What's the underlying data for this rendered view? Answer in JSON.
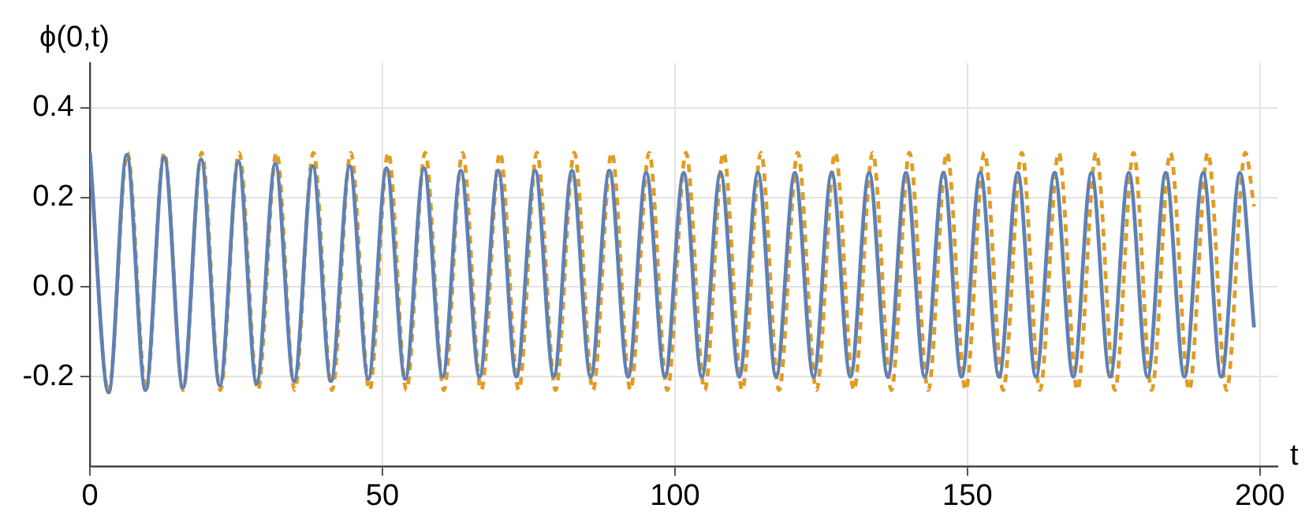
{
  "chart_data": {
    "type": "line",
    "xlabel": "t",
    "ylabel": "ϕ(0,t)",
    "xlim": [
      0,
      203
    ],
    "xticks": [
      0,
      50,
      100,
      150,
      200
    ],
    "ylim": [
      -0.4,
      0.5
    ],
    "yticks": [
      {
        "value": -0.2,
        "label": "-0.2"
      },
      {
        "value": 0,
        "label": "0.0"
      },
      {
        "value": 0.2,
        "label": "0.2"
      },
      {
        "value": 0.4,
        "label": "0.4"
      }
    ],
    "grid": true,
    "legend": false,
    "marker": "none",
    "series": [
      {
        "color": "#5e81b5",
        "line_style": "solid",
        "x": [
          0,
          3.2,
          6.3,
          9.5,
          12.7,
          15.9,
          19.0,
          22.2,
          25.4,
          28.5,
          31.7,
          34.9,
          38.1,
          41.2,
          44.4,
          47.6,
          50.7,
          53.9,
          57.1,
          60.3,
          63.4,
          66.6,
          69.8,
          72.9,
          76.1,
          79.3,
          82.4,
          85.6,
          88.8,
          92.0,
          95.1,
          98.3,
          101.5,
          104.6,
          107.8,
          111.0,
          114.2,
          117.3,
          120.5,
          123.7,
          126.8,
          130.0,
          133.2,
          136.4,
          139.5,
          142.7,
          145.9,
          149.0,
          152.2,
          155.4,
          158.6,
          161.7,
          164.9,
          168.1,
          171.2,
          174.4,
          177.6,
          180.8,
          183.9,
          187.1,
          190.3,
          193.4,
          196.6,
          199
        ],
        "values": [
          0.3,
          -0.235,
          0.295,
          -0.23,
          0.29,
          -0.225,
          0.285,
          -0.22,
          0.28,
          -0.215,
          0.275,
          -0.21,
          0.27,
          -0.21,
          0.27,
          -0.205,
          0.265,
          -0.205,
          0.265,
          -0.2,
          0.26,
          -0.2,
          0.26,
          -0.2,
          0.26,
          -0.2,
          0.26,
          -0.2,
          0.26,
          -0.2,
          0.255,
          -0.2,
          0.255,
          -0.2,
          0.255,
          -0.2,
          0.255,
          -0.2,
          0.255,
          -0.2,
          0.255,
          -0.2,
          0.255,
          -0.2,
          0.255,
          -0.2,
          0.255,
          -0.2,
          0.255,
          -0.2,
          0.255,
          -0.2,
          0.255,
          -0.2,
          0.255,
          -0.2,
          0.255,
          -0.2,
          0.255,
          -0.2,
          0.255,
          -0.2,
          0.255,
          -0.09
        ]
      },
      {
        "color": "#e19c24",
        "line_style": "dashed",
        "x": [
          0,
          3.2,
          6.4,
          9.6,
          12.7,
          15.9,
          19.1,
          22.3,
          25.5,
          28.7,
          31.9,
          35.0,
          38.2,
          41.4,
          44.6,
          47.8,
          51.0,
          54.1,
          57.3,
          60.5,
          63.7,
          66.9,
          70.1,
          73.3,
          76.4,
          79.6,
          82.8,
          86.0,
          89.2,
          92.4,
          95.6,
          98.7,
          101.9,
          105.1,
          108.3,
          111.5,
          114.7,
          117.8,
          121.0,
          124.2,
          127.4,
          130.6,
          133.8,
          137.0,
          140.1,
          143.3,
          146.5,
          149.7,
          152.9,
          156.1,
          159.3,
          162.4,
          165.6,
          168.8,
          172.0,
          175.2,
          178.4,
          181.5,
          184.7,
          187.9,
          191.1,
          194.3,
          197.5,
          199
        ],
        "values": [
          0.3,
          -0.235,
          0.3,
          -0.23,
          0.3,
          -0.23,
          0.3,
          -0.23,
          0.3,
          -0.23,
          0.3,
          -0.23,
          0.3,
          -0.23,
          0.3,
          -0.23,
          0.3,
          -0.23,
          0.3,
          -0.23,
          0.3,
          -0.23,
          0.3,
          -0.23,
          0.3,
          -0.23,
          0.3,
          -0.23,
          0.3,
          -0.23,
          0.3,
          -0.23,
          0.3,
          -0.23,
          0.3,
          -0.23,
          0.3,
          -0.23,
          0.3,
          -0.23,
          0.3,
          -0.23,
          0.3,
          -0.23,
          0.3,
          -0.23,
          0.3,
          -0.23,
          0.3,
          -0.23,
          0.3,
          -0.23,
          0.3,
          -0.23,
          0.3,
          -0.23,
          0.3,
          -0.23,
          0.3,
          -0.23,
          0.3,
          -0.23,
          0.3,
          0.18
        ]
      }
    ]
  }
}
